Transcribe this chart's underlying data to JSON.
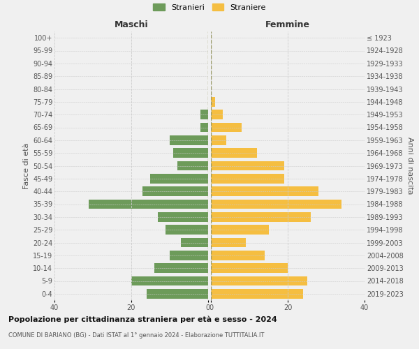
{
  "age_groups": [
    "100+",
    "95-99",
    "90-94",
    "85-89",
    "80-84",
    "75-79",
    "70-74",
    "65-69",
    "60-64",
    "55-59",
    "50-54",
    "45-49",
    "40-44",
    "35-39",
    "30-34",
    "25-29",
    "20-24",
    "15-19",
    "10-14",
    "5-9",
    "0-4"
  ],
  "birth_years": [
    "≤ 1923",
    "1924-1928",
    "1929-1933",
    "1934-1938",
    "1939-1943",
    "1944-1948",
    "1949-1953",
    "1954-1958",
    "1959-1963",
    "1964-1968",
    "1969-1973",
    "1974-1978",
    "1979-1983",
    "1984-1988",
    "1989-1993",
    "1994-1998",
    "1999-2003",
    "2004-2008",
    "2009-2013",
    "2014-2018",
    "2019-2023"
  ],
  "maschi": [
    0,
    0,
    0,
    0,
    0,
    0,
    2,
    2,
    10,
    9,
    8,
    15,
    17,
    31,
    13,
    11,
    7,
    10,
    14,
    20,
    16
  ],
  "femmine": [
    0,
    0,
    0,
    0,
    0,
    1,
    3,
    8,
    4,
    12,
    19,
    19,
    28,
    34,
    26,
    15,
    9,
    14,
    20,
    25,
    24
  ],
  "maschi_color": "#6d9b5a",
  "femmine_color": "#f5be41",
  "background_color": "#f0f0f0",
  "grid_color": "#cccccc",
  "title": "Popolazione per cittadinanza straniera per età e sesso - 2024",
  "subtitle": "COMUNE DI BARIANO (BG) - Dati ISTAT al 1° gennaio 2024 - Elaborazione TUTTITALIA.IT",
  "xlabel_left": "Maschi",
  "xlabel_right": "Femmine",
  "ylabel_left": "Fasce di età",
  "ylabel_right": "Anni di nascita",
  "legend_maschi": "Stranieri",
  "legend_femmine": "Straniere",
  "xlim": 40,
  "bar_height": 0.75
}
